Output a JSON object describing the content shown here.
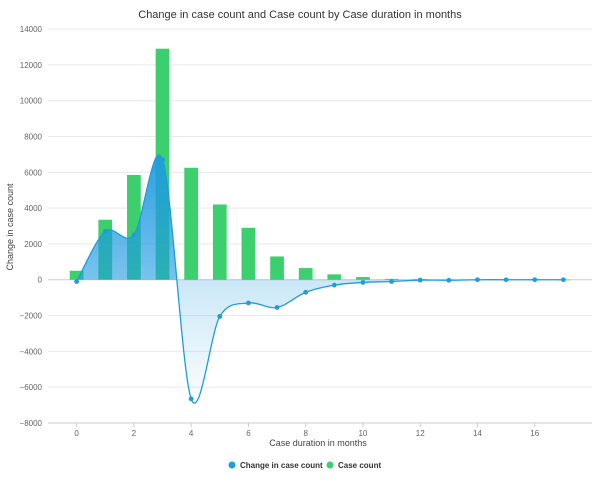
{
  "chart_data": {
    "type": "bar",
    "title": "Change in case count and Case count by Case duration in months",
    "xlabel": "Case duration in months",
    "ylabel": "Change in case count",
    "xlim": [
      -1,
      18
    ],
    "ylim": [
      -8000,
      14000
    ],
    "x_ticks": [
      0,
      2,
      4,
      6,
      8,
      10,
      12,
      14,
      16
    ],
    "y_ticks": [
      -8000,
      -6000,
      -4000,
      -2000,
      0,
      2000,
      4000,
      6000,
      8000,
      10000,
      12000,
      14000
    ],
    "x_tick_labels": [
      "0",
      "2",
      "4",
      "6",
      "8",
      "10",
      "12",
      "14",
      "16"
    ],
    "y_tick_labels": [
      "−8000",
      "−6000",
      "−4000",
      "−2000",
      "0",
      "2000",
      "4000",
      "6000",
      "8000",
      "10000",
      "12000",
      "14000"
    ],
    "grid": true,
    "legend_position": "bottom-center",
    "series": [
      {
        "name": "Change in case count",
        "type": "area-spline",
        "color": "#1f9be0",
        "x": [
          0,
          1,
          2,
          3,
          4,
          5,
          6,
          7,
          8,
          9,
          10,
          11,
          12,
          13,
          14,
          15,
          16,
          17
        ],
        "values": [
          -100,
          2700,
          2500,
          6700,
          -6650,
          -2050,
          -1300,
          -1550,
          -700,
          -300,
          -150,
          -100,
          -20,
          -30,
          0,
          0,
          0,
          0
        ]
      },
      {
        "name": "Case count",
        "type": "bar",
        "color": "#3ccf6e",
        "x": [
          0,
          1,
          2,
          3,
          4,
          5,
          6,
          7,
          8,
          9,
          10,
          11,
          12,
          13,
          14,
          15,
          16,
          17
        ],
        "values": [
          500,
          3350,
          5850,
          12900,
          6250,
          4200,
          2900,
          1300,
          650,
          300,
          150,
          50,
          30,
          10,
          5,
          3,
          2,
          1
        ]
      }
    ]
  }
}
